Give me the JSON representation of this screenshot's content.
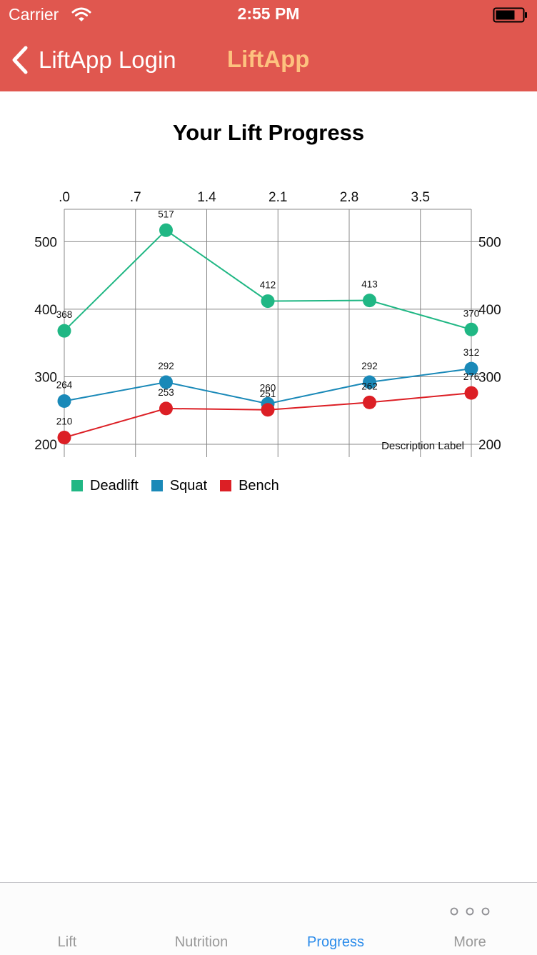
{
  "status_bar": {
    "carrier": "Carrier",
    "time": "2:55 PM"
  },
  "nav": {
    "back_label": "LiftApp Login",
    "title": "LiftApp"
  },
  "colors": {
    "nav_bg": "#e0574f",
    "title_accent": "#fdc27f",
    "deadlift": "#20b784",
    "squat": "#1a89b8",
    "bench": "#dc1f25",
    "tab_active": "#2a8bea"
  },
  "chart_data": {
    "type": "line",
    "title": "Your Lift Progress",
    "description": "Description Label",
    "x": [
      0,
      1,
      2,
      3,
      4
    ],
    "x_ticks": [
      ".0",
      ".7",
      "1.4",
      "2.1",
      "2.8",
      "3.5"
    ],
    "x_tick_values": [
      0,
      0.7,
      1.4,
      2.1,
      2.8,
      3.5
    ],
    "xlim": [
      0,
      4
    ],
    "y_ticks": [
      "200",
      "300",
      "400",
      "500"
    ],
    "y_tick_values": [
      200,
      300,
      400,
      500
    ],
    "ylim": [
      200,
      548
    ],
    "grid": true,
    "legend_position": "bottom-left",
    "series": [
      {
        "name": "Deadlift",
        "color": "#20b784",
        "values": [
          368,
          517,
          412,
          413,
          370
        ]
      },
      {
        "name": "Squat",
        "color": "#1a89b8",
        "values": [
          264,
          292,
          260,
          292,
          312
        ]
      },
      {
        "name": "Bench",
        "color": "#dc1f25",
        "values": [
          210,
          253,
          251,
          262,
          276
        ]
      }
    ]
  },
  "tabs": [
    {
      "label": "Lift",
      "active": false
    },
    {
      "label": "Nutrition",
      "active": false
    },
    {
      "label": "Progress",
      "active": true
    },
    {
      "label": "More",
      "active": false,
      "icon": "more-icon"
    }
  ]
}
